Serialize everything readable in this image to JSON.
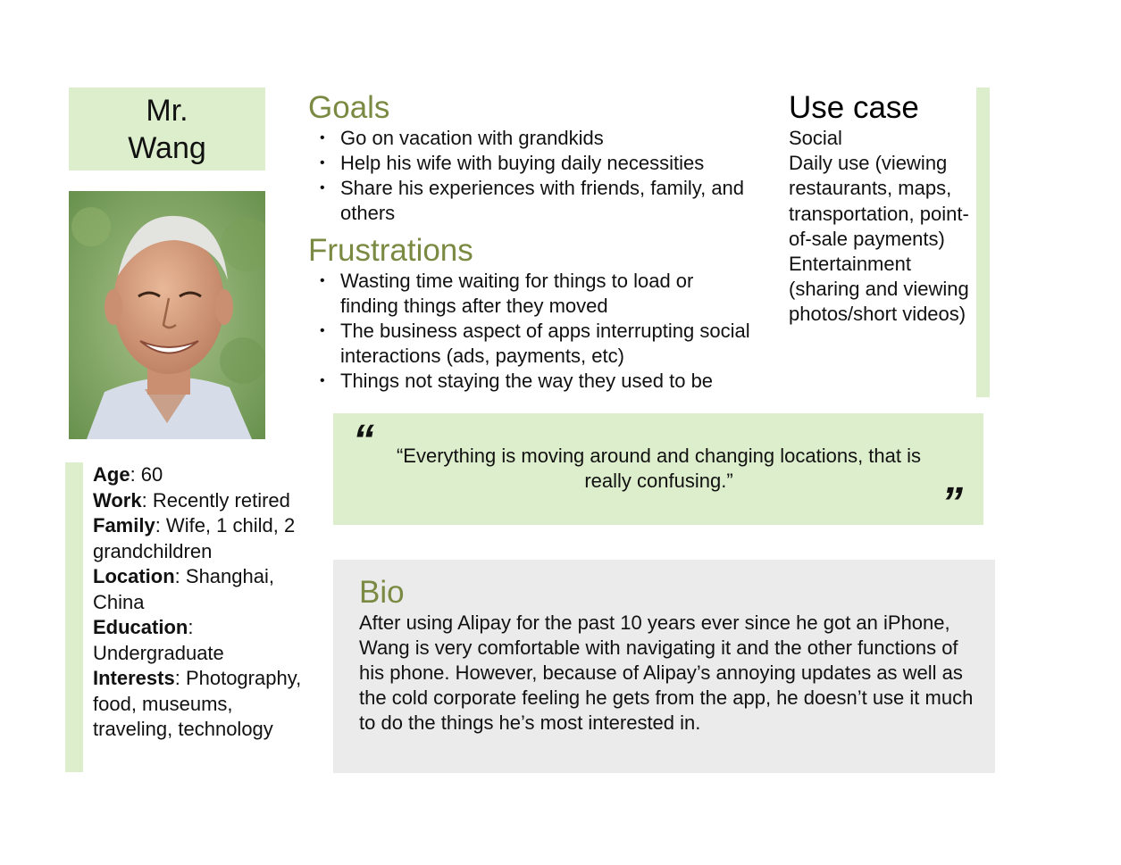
{
  "persona": {
    "name_line1": "Mr.",
    "name_line2": "Wang"
  },
  "demographics": [
    {
      "label": "Age",
      "value": ": 60"
    },
    {
      "label": "Work",
      "value": ": Recently retired"
    },
    {
      "label": "Family",
      "value": ": Wife, 1 child, 2 grandchildren"
    },
    {
      "label": "Location",
      "value": ": Shanghai, China"
    },
    {
      "label": "Education",
      "value": ": Undergraduate"
    },
    {
      "label": "Interests",
      "value": ": Photography, food, museums, traveling, technology"
    }
  ],
  "goals": {
    "title": "Goals",
    "items": [
      "Go on vacation with grandkids",
      "Help his wife with buying daily necessities",
      "Share his experiences with friends, family, and others"
    ]
  },
  "frustrations": {
    "title": "Frustrations",
    "items": [
      "Wasting time waiting for things to load or finding things after they moved",
      "The business aspect of apps interrupting social interactions (ads, payments, etc)",
      "Things not staying the way they used to be"
    ]
  },
  "use_case": {
    "title": "Use case",
    "lines": [
      "Social",
      "Daily use (viewing restaurants, maps, transportation, point-of-sale payments)",
      "Entertainment (sharing and viewing photos/short videos)"
    ]
  },
  "quote": {
    "open_mark": "“",
    "close_mark": "”",
    "text": "“Everything is moving around and changing locations, that is really confusing.”"
  },
  "bio": {
    "title": "Bio",
    "text": "After using Alipay for the past 10 years ever since he got an iPhone, Wang is very comfortable with navigating it and the other functions of his phone. However, because of Alipay’s annoying updates as well as the cold corporate feeling he gets from the app, he doesn’t use it much to do the things he’s most interested in."
  },
  "colors": {
    "accent_green": "#7a8a42",
    "panel_green": "#ddeecc",
    "panel_gray": "#ebebeb"
  }
}
